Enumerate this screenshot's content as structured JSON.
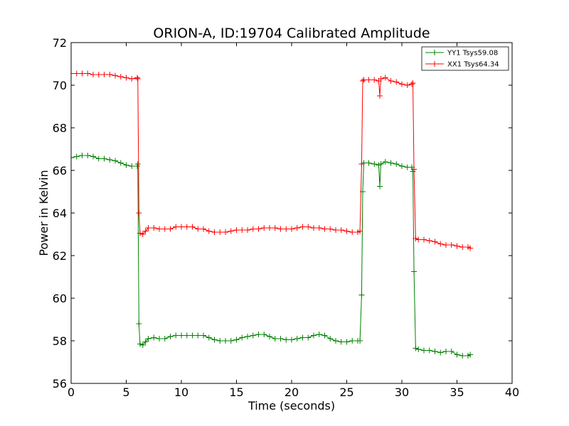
{
  "chart_data": {
    "type": "line",
    "title": "ORION-A, ID:19704 Calibrated Amplitude",
    "xlabel": "Time (seconds)",
    "ylabel": "Power in Kelvin",
    "xlim": [
      0,
      40
    ],
    "ylim": [
      56,
      72
    ],
    "xticks": [
      0,
      5,
      10,
      15,
      20,
      25,
      30,
      35,
      40
    ],
    "yticks": [
      56,
      58,
      60,
      62,
      64,
      66,
      68,
      70,
      72
    ],
    "grid": false,
    "legend_position": "top-right",
    "marker": "plus",
    "series": [
      {
        "name": "YY1 Tsys59.08",
        "color": "#008000",
        "points": [
          [
            0.0,
            66.6
          ],
          [
            0.5,
            66.65
          ],
          [
            1.0,
            66.7
          ],
          [
            1.5,
            66.7
          ],
          [
            2.0,
            66.65
          ],
          [
            2.5,
            66.55
          ],
          [
            3.0,
            66.55
          ],
          [
            3.5,
            66.5
          ],
          [
            4.0,
            66.45
          ],
          [
            4.5,
            66.35
          ],
          [
            5.0,
            66.25
          ],
          [
            5.5,
            66.2
          ],
          [
            6.0,
            66.2
          ],
          [
            6.05,
            66.3
          ],
          [
            6.15,
            58.8
          ],
          [
            6.25,
            57.85
          ],
          [
            6.5,
            57.8
          ],
          [
            6.75,
            57.95
          ],
          [
            7.0,
            58.1
          ],
          [
            7.5,
            58.15
          ],
          [
            8.0,
            58.1
          ],
          [
            8.5,
            58.1
          ],
          [
            9.0,
            58.2
          ],
          [
            9.5,
            58.25
          ],
          [
            10.0,
            58.25
          ],
          [
            10.5,
            58.25
          ],
          [
            11.0,
            58.25
          ],
          [
            11.5,
            58.25
          ],
          [
            12.0,
            58.25
          ],
          [
            12.5,
            58.15
          ],
          [
            13.0,
            58.05
          ],
          [
            13.5,
            58.0
          ],
          [
            14.0,
            58.0
          ],
          [
            14.5,
            58.0
          ],
          [
            15.0,
            58.05
          ],
          [
            15.5,
            58.15
          ],
          [
            16.0,
            58.2
          ],
          [
            16.5,
            58.25
          ],
          [
            17.0,
            58.3
          ],
          [
            17.5,
            58.3
          ],
          [
            18.0,
            58.2
          ],
          [
            18.5,
            58.1
          ],
          [
            19.0,
            58.1
          ],
          [
            19.5,
            58.05
          ],
          [
            20.0,
            58.05
          ],
          [
            20.5,
            58.1
          ],
          [
            21.0,
            58.15
          ],
          [
            21.5,
            58.15
          ],
          [
            22.0,
            58.25
          ],
          [
            22.5,
            58.3
          ],
          [
            23.0,
            58.25
          ],
          [
            23.5,
            58.1
          ],
          [
            24.0,
            58.0
          ],
          [
            24.5,
            57.95
          ],
          [
            25.0,
            57.95
          ],
          [
            25.5,
            58.0
          ],
          [
            26.0,
            58.0
          ],
          [
            26.2,
            58.0
          ],
          [
            26.35,
            60.15
          ],
          [
            26.45,
            65.0
          ],
          [
            26.55,
            66.35
          ],
          [
            27.0,
            66.35
          ],
          [
            27.5,
            66.3
          ],
          [
            27.9,
            66.25
          ],
          [
            28.0,
            65.25
          ],
          [
            28.1,
            66.3
          ],
          [
            28.5,
            66.4
          ],
          [
            29.0,
            66.35
          ],
          [
            29.5,
            66.3
          ],
          [
            30.0,
            66.2
          ],
          [
            30.5,
            66.15
          ],
          [
            30.9,
            66.15
          ],
          [
            31.0,
            65.95
          ],
          [
            31.1,
            61.25
          ],
          [
            31.25,
            57.65
          ],
          [
            31.5,
            57.6
          ],
          [
            32.0,
            57.55
          ],
          [
            32.5,
            57.55
          ],
          [
            33.0,
            57.5
          ],
          [
            33.5,
            57.45
          ],
          [
            34.0,
            57.5
          ],
          [
            34.5,
            57.5
          ],
          [
            35.0,
            57.35
          ],
          [
            35.5,
            57.3
          ],
          [
            36.0,
            57.3
          ],
          [
            36.2,
            57.35
          ]
        ]
      },
      {
        "name": "XX1 Tsys64.34",
        "color": "#ff0000",
        "points": [
          [
            0.0,
            70.55
          ],
          [
            0.5,
            70.55
          ],
          [
            1.0,
            70.55
          ],
          [
            1.5,
            70.55
          ],
          [
            2.0,
            70.5
          ],
          [
            2.5,
            70.5
          ],
          [
            3.0,
            70.5
          ],
          [
            3.5,
            70.5
          ],
          [
            4.0,
            70.45
          ],
          [
            4.5,
            70.4
          ],
          [
            5.0,
            70.35
          ],
          [
            5.5,
            70.3
          ],
          [
            6.0,
            70.35
          ],
          [
            6.05,
            70.3
          ],
          [
            6.15,
            64.0
          ],
          [
            6.25,
            63.05
          ],
          [
            6.5,
            63.0
          ],
          [
            6.75,
            63.15
          ],
          [
            7.0,
            63.3
          ],
          [
            7.5,
            63.3
          ],
          [
            8.0,
            63.25
          ],
          [
            8.5,
            63.25
          ],
          [
            9.0,
            63.25
          ],
          [
            9.5,
            63.35
          ],
          [
            10.0,
            63.35
          ],
          [
            10.5,
            63.35
          ],
          [
            11.0,
            63.35
          ],
          [
            11.5,
            63.25
          ],
          [
            12.0,
            63.25
          ],
          [
            12.5,
            63.15
          ],
          [
            13.0,
            63.1
          ],
          [
            13.5,
            63.1
          ],
          [
            14.0,
            63.1
          ],
          [
            14.5,
            63.15
          ],
          [
            15.0,
            63.2
          ],
          [
            15.5,
            63.2
          ],
          [
            16.0,
            63.2
          ],
          [
            16.5,
            63.25
          ],
          [
            17.0,
            63.25
          ],
          [
            17.5,
            63.3
          ],
          [
            18.0,
            63.3
          ],
          [
            18.5,
            63.3
          ],
          [
            19.0,
            63.25
          ],
          [
            19.5,
            63.25
          ],
          [
            20.0,
            63.25
          ],
          [
            20.5,
            63.3
          ],
          [
            21.0,
            63.35
          ],
          [
            21.5,
            63.35
          ],
          [
            22.0,
            63.3
          ],
          [
            22.5,
            63.3
          ],
          [
            23.0,
            63.25
          ],
          [
            23.5,
            63.25
          ],
          [
            24.0,
            63.2
          ],
          [
            24.5,
            63.2
          ],
          [
            25.0,
            63.15
          ],
          [
            25.5,
            63.1
          ],
          [
            26.0,
            63.1
          ],
          [
            26.2,
            63.15
          ],
          [
            26.35,
            66.3
          ],
          [
            26.45,
            70.2
          ],
          [
            26.55,
            70.25
          ],
          [
            27.0,
            70.25
          ],
          [
            27.5,
            70.25
          ],
          [
            27.9,
            70.2
          ],
          [
            28.0,
            69.5
          ],
          [
            28.1,
            70.3
          ],
          [
            28.5,
            70.35
          ],
          [
            29.0,
            70.2
          ],
          [
            29.5,
            70.15
          ],
          [
            30.0,
            70.05
          ],
          [
            30.5,
            70.0
          ],
          [
            30.9,
            70.05
          ],
          [
            31.0,
            70.1
          ],
          [
            31.1,
            66.05
          ],
          [
            31.25,
            62.8
          ],
          [
            31.5,
            62.75
          ],
          [
            32.0,
            62.75
          ],
          [
            32.5,
            62.7
          ],
          [
            33.0,
            62.65
          ],
          [
            33.5,
            62.55
          ],
          [
            34.0,
            62.5
          ],
          [
            34.5,
            62.5
          ],
          [
            35.0,
            62.45
          ],
          [
            35.5,
            62.4
          ],
          [
            36.0,
            62.4
          ],
          [
            36.2,
            62.35
          ]
        ]
      }
    ]
  }
}
